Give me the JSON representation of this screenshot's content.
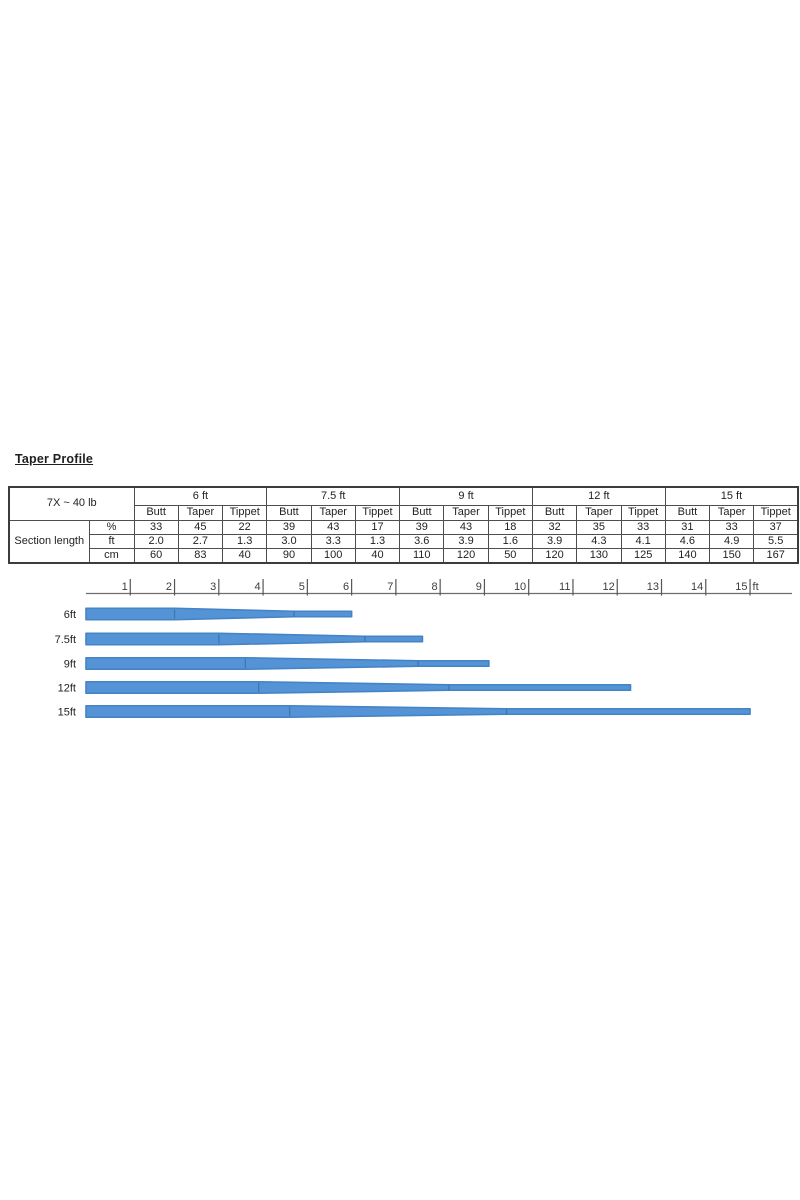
{
  "page": {
    "title": "Taper Profile"
  },
  "table": {
    "corner_label": "7X ~ 40 lb",
    "row_group_label": "Section length",
    "groups": [
      "6 ft",
      "7.5 ft",
      "9 ft",
      "12 ft",
      "15 ft"
    ],
    "sub_headers": [
      "Butt",
      "Taper",
      "Tippet"
    ],
    "rows": [
      {
        "label": "%",
        "values": [
          "33",
          "45",
          "22",
          "39",
          "43",
          "17",
          "39",
          "43",
          "18",
          "32",
          "35",
          "33",
          "31",
          "33",
          "37"
        ]
      },
      {
        "label": "ft",
        "values": [
          "2.0",
          "2.7",
          "1.3",
          "3.0",
          "3.3",
          "1.3",
          "3.6",
          "3.9",
          "1.6",
          "3.9",
          "4.3",
          "4.1",
          "4.6",
          "4.9",
          "5.5"
        ]
      },
      {
        "label": "cm",
        "values": [
          "60",
          "83",
          "40",
          "90",
          "100",
          "40",
          "110",
          "120",
          "50",
          "120",
          "130",
          "125",
          "140",
          "150",
          "167"
        ]
      }
    ]
  },
  "chart_data": {
    "type": "bar",
    "title": "",
    "unit_label": "ft",
    "x_ticks": [
      1,
      2,
      3,
      4,
      5,
      6,
      7,
      8,
      9,
      10,
      11,
      12,
      13,
      14,
      15
    ],
    "xlim": [
      0,
      15.9
    ],
    "bars": [
      {
        "label": "6ft",
        "butt_ft": 2.0,
        "taper_ft": 2.7,
        "tippet_ft": 1.3
      },
      {
        "label": "7.5ft",
        "butt_ft": 3.0,
        "taper_ft": 3.3,
        "tippet_ft": 1.3
      },
      {
        "label": "9ft",
        "butt_ft": 3.6,
        "taper_ft": 3.9,
        "tippet_ft": 1.6
      },
      {
        "label": "12ft",
        "butt_ft": 3.9,
        "taper_ft": 4.3,
        "tippet_ft": 4.1
      },
      {
        "label": "15ft",
        "butt_ft": 4.6,
        "taper_ft": 4.9,
        "tippet_ft": 5.5
      }
    ],
    "colors": {
      "bar_fill": "#5493d6",
      "bar_edge": "#4484c4",
      "section_divider": "#3f77ae",
      "axis": "#6e6e6e",
      "tick": "#555555",
      "tick_label": "#3d3d3d",
      "bar_label": "#1f1f1f"
    }
  }
}
